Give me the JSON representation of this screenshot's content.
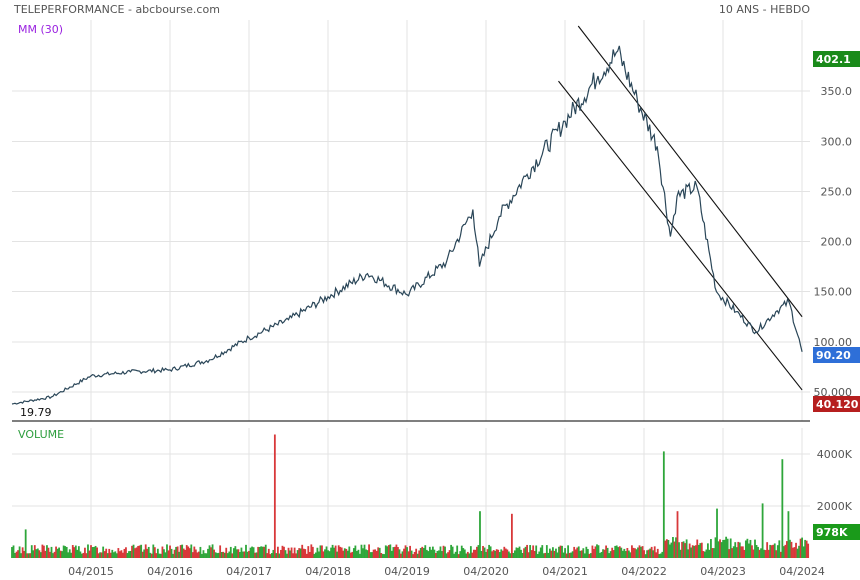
{
  "header": {
    "title": "TELEPERFORMANCE - abcbourse.com",
    "period": "10 ANS - HEBDO"
  },
  "colors": {
    "price_line": "#2a4658",
    "ma_label": "#9a22e0",
    "volume_label": "#2e9e3e",
    "badge_high": "#1a8a1a",
    "badge_last": "#2e6fd8",
    "badge_low": "#b61f1f",
    "badge_volume": "#1a9a1a",
    "vol_up": "#2ea63a",
    "vol_down": "#d8383a"
  },
  "chart_data": [
    {
      "type": "line",
      "indicator_label": "MM (30)",
      "x_tick_labels": [
        "04/2015",
        "04/2016",
        "04/2017",
        "04/2018",
        "04/2019",
        "04/2020",
        "04/2021",
        "04/2022",
        "04/2023",
        "04/2024"
      ],
      "y_tick_labels": [
        "50.000",
        "100.00",
        "150.00",
        "200.0",
        "250.0",
        "300.0",
        "350.0"
      ],
      "y_ticks": [
        50,
        100,
        150,
        200,
        250,
        300,
        350
      ],
      "ylim": [
        21,
        421
      ],
      "x": [
        "2014-04",
        "2014-10",
        "2015-04",
        "2015-10",
        "2016-04",
        "2016-10",
        "2017-04",
        "2017-10",
        "2018-04",
        "2018-10",
        "2019-04",
        "2019-10",
        "2020-02",
        "2020-03",
        "2020-06",
        "2020-10",
        "2021-04",
        "2021-09",
        "2021-12",
        "2022-03",
        "2022-06",
        "2022-08",
        "2022-09",
        "2022-12",
        "2023-03",
        "2023-06",
        "2023-09",
        "2023-12",
        "2024-02",
        "2024-04"
      ],
      "values": [
        38,
        45,
        66,
        70,
        72,
        82,
        104,
        122,
        145,
        168,
        147,
        180,
        232,
        175,
        225,
        265,
        320,
        365,
        390,
        340,
        295,
        205,
        245,
        255,
        150,
        130,
        110,
        130,
        140,
        90
      ],
      "markers": {
        "high": "402.1",
        "last": "90.20",
        "low": "40.120",
        "min_label": "19.79"
      },
      "channel": {
        "upper": {
          "from": [
            "2021-06",
            415
          ],
          "to": [
            "2024-04",
            125
          ]
        },
        "lower": {
          "from": [
            "2021-03",
            360
          ],
          "to": [
            "2024-04",
            52
          ]
        }
      },
      "grid": true
    },
    {
      "type": "bar",
      "indicator_label": "VOLUME",
      "y_tick_labels": [
        "2000K",
        "4000K"
      ],
      "y_ticks": [
        2000,
        4000
      ],
      "ylim": [
        0,
        5000
      ],
      "last_value_label": "978K",
      "x": [
        "2014-06",
        "2017-08",
        "2020-03",
        "2020-08",
        "2022-07",
        "2022-09",
        "2023-03",
        "2023-10",
        "2024-01",
        "2024-02"
      ],
      "values": [
        1100,
        4750,
        1800,
        1700,
        4100,
        1800,
        1900,
        2100,
        3800,
        1800
      ],
      "baseline": 420,
      "grid": true
    }
  ]
}
